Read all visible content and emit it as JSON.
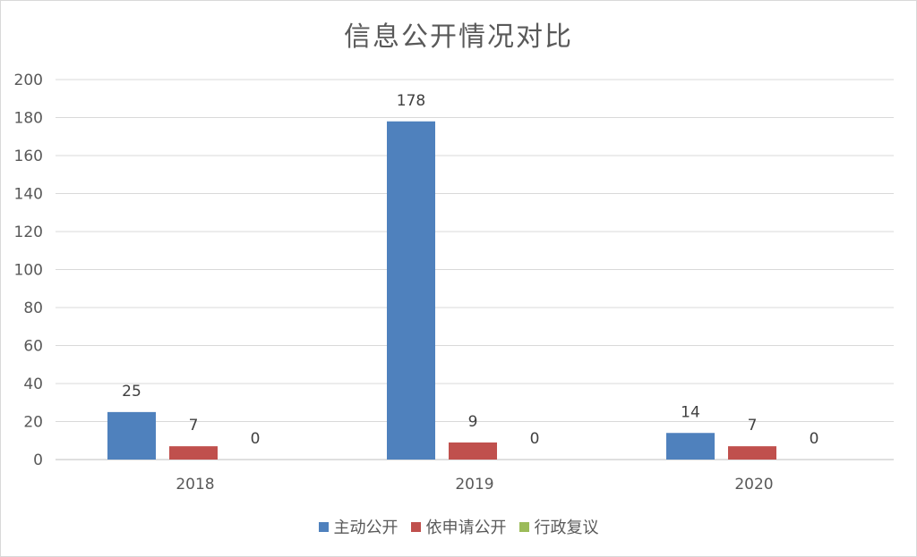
{
  "chart_data": {
    "type": "bar",
    "title": "信息公开情况对比",
    "categories": [
      "2018",
      "2019",
      "2020"
    ],
    "series": [
      {
        "name": "主动公开",
        "values": [
          25,
          178,
          14
        ],
        "color": "#4f81bd"
      },
      {
        "name": "依申请公开",
        "values": [
          7,
          9,
          7
        ],
        "color": "#c0504d"
      },
      {
        "name": "行政复议",
        "values": [
          0,
          0,
          0
        ],
        "color": "#9bbb59"
      }
    ],
    "ylim": [
      0,
      200
    ],
    "yticks": [
      0,
      20,
      40,
      60,
      80,
      100,
      120,
      140,
      160,
      180,
      200
    ],
    "grid": true,
    "legend_position": "bottom",
    "data_labels": true
  }
}
